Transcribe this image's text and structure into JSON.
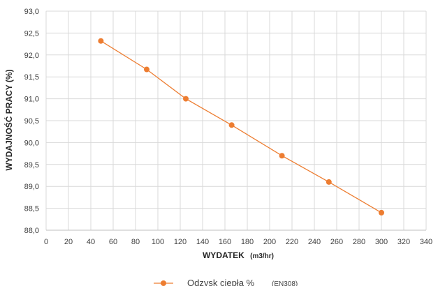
{
  "chart_data": {
    "type": "line",
    "xlabel": "WYDATEK",
    "xlabel_unit": "(m3/hr)",
    "ylabel": "WYDAJNOŚĆ PRACY (%)",
    "xlim": [
      0,
      340
    ],
    "ylim": [
      88.0,
      93.0
    ],
    "x_ticks": [
      "0",
      "20",
      "40",
      "60",
      "80",
      "100",
      "120",
      "140",
      "160",
      "180",
      "200",
      "220",
      "240",
      "260",
      "280",
      "300",
      "320",
      "340"
    ],
    "y_ticks": [
      "93,0",
      "92,5",
      "92,0",
      "91,5",
      "91,0",
      "90,5",
      "90,0",
      "89,5",
      "89,0",
      "88,5",
      "88,0"
    ],
    "grid": true,
    "legend": {
      "placement": "bottom",
      "label": "Odzysk ciepła %",
      "note": "(EN308)"
    },
    "series": [
      {
        "name": "Odzysk ciepła %",
        "color": "#ed7d31",
        "points": [
          {
            "x": 49,
            "y": 92.32
          },
          {
            "x": 90,
            "y": 91.67
          },
          {
            "x": 125,
            "y": 91.0
          },
          {
            "x": 166,
            "y": 90.4
          },
          {
            "x": 211,
            "y": 89.7
          },
          {
            "x": 253,
            "y": 89.1
          },
          {
            "x": 300,
            "y": 88.4
          }
        ]
      }
    ]
  }
}
